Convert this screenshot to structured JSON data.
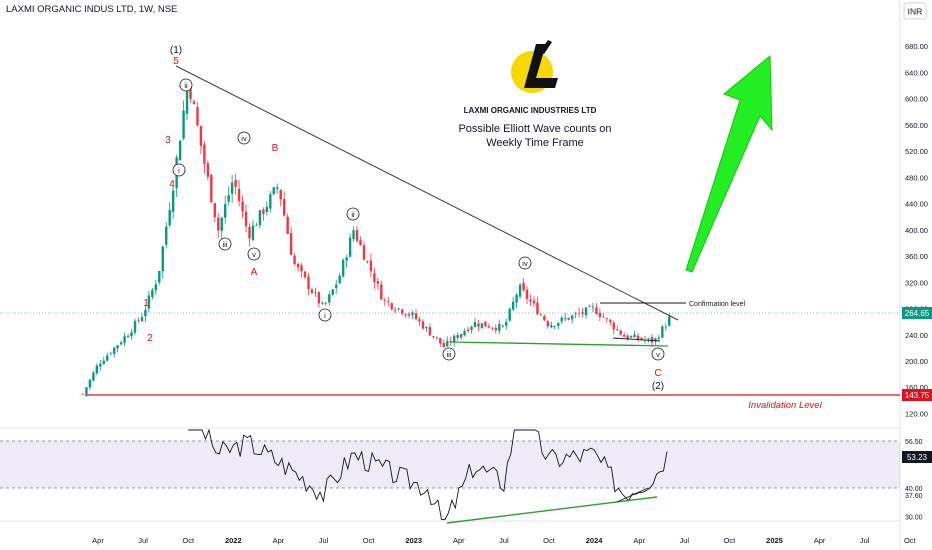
{
  "header": {
    "symbol_title": "LAXMI ORGANIC INDUS LTD, 1W, NSE"
  },
  "currency": "INR",
  "annotations": {
    "company_name": "LAXMI ORGANIC INDUSTRIES LTD",
    "note_line1": "Possible Elliott Wave counts on",
    "note_line2": "Weekly Time Frame",
    "confirmation_label": "Confirmation level",
    "invalidation_label": "Invalidation Level"
  },
  "colors": {
    "up_candle": "#089981",
    "down_candle": "#f23645",
    "wave_red": "#e0101e",
    "trendline": "#3a3a3a",
    "support_green": "#2e9e2e",
    "invalidation_red": "#e0101e",
    "arrow_green": "#22ee22",
    "price_badge": "#089981",
    "rsi_band": "#7e57c2",
    "logo_yellow": "#f5d800"
  },
  "chart_data": [
    {
      "type": "candlestick",
      "timeframe": "1W",
      "x_tick_labels": [
        "Apr",
        "Jul",
        "Oct",
        "2022",
        "Apr",
        "Jul",
        "Oct",
        "2023",
        "Apr",
        "Jul",
        "Oct",
        "2024",
        "Apr",
        "Jul",
        "Oct",
        "2025",
        "Apr",
        "Jul",
        "Oct"
      ],
      "y_tick_labels": [
        "680.00",
        "640.00",
        "600.00",
        "560.00",
        "520.00",
        "480.00",
        "440.00",
        "400.00",
        "360.00",
        "320.00",
        "280.00",
        "240.00",
        "200.00",
        "160.00",
        "120.00"
      ],
      "ylim": [
        110,
        700
      ],
      "price_path": [
        {
          "t": "2021-03",
          "v": 150
        },
        {
          "t": "2021-04",
          "v": 195
        },
        {
          "t": "2021-05",
          "v": 218
        },
        {
          "t": "2021-06",
          "v": 242
        },
        {
          "t": "2021-07",
          "v": 272
        },
        {
          "t": "2021-08",
          "v": 330
        },
        {
          "t": "2021-09",
          "v": 470
        },
        {
          "t": "2021-10",
          "v": 630
        },
        {
          "t": "2021-11",
          "v": 510
        },
        {
          "t": "2021-12",
          "v": 400
        },
        {
          "t": "2022-01",
          "v": 478
        },
        {
          "t": "2022-02",
          "v": 392
        },
        {
          "t": "2022-04",
          "v": 468
        },
        {
          "t": "2022-05",
          "v": 350
        },
        {
          "t": "2022-07",
          "v": 280
        },
        {
          "t": "2022-08",
          "v": 325
        },
        {
          "t": "2022-09",
          "v": 400
        },
        {
          "t": "2022-11",
          "v": 292
        },
        {
          "t": "2023-01",
          "v": 268
        },
        {
          "t": "2023-03",
          "v": 222
        },
        {
          "t": "2023-05",
          "v": 258
        },
        {
          "t": "2023-07",
          "v": 250
        },
        {
          "t": "2023-08",
          "v": 312
        },
        {
          "t": "2023-10",
          "v": 255
        },
        {
          "t": "2024-01",
          "v": 280
        },
        {
          "t": "2024-03",
          "v": 238
        },
        {
          "t": "2024-05",
          "v": 230
        },
        {
          "t": "2024-06",
          "v": 264.65
        }
      ],
      "last_price": "264.65",
      "invalidation_level": "143.75",
      "confirmation_level": 276,
      "wave_labels": [
        "(1)",
        "5",
        "3",
        "4",
        "1",
        "2",
        "i",
        "ii",
        "iii",
        "iv",
        "v",
        "A",
        "B",
        "i",
        "ii",
        "iii",
        "iv",
        "v",
        "C",
        "(2)"
      ]
    },
    {
      "type": "line",
      "name": "RSI",
      "y_tick_labels": [
        "56.50",
        "50.00",
        "40.00",
        "37.60",
        "30.00"
      ],
      "band": [
        40,
        56.5
      ],
      "last_value": "53.23",
      "points": [
        {
          "t": "2021-10",
          "v": 69
        },
        {
          "t": "2021-12",
          "v": 52
        },
        {
          "t": "2022-02",
          "v": 56
        },
        {
          "t": "2022-05",
          "v": 46
        },
        {
          "t": "2022-07",
          "v": 38
        },
        {
          "t": "2022-09",
          "v": 52
        },
        {
          "t": "2022-12",
          "v": 44
        },
        {
          "t": "2023-02",
          "v": 40
        },
        {
          "t": "2023-03",
          "v": 27
        },
        {
          "t": "2023-05",
          "v": 48
        },
        {
          "t": "2023-07",
          "v": 42
        },
        {
          "t": "2023-08",
          "v": 68
        },
        {
          "t": "2023-10",
          "v": 50
        },
        {
          "t": "2024-01",
          "v": 52
        },
        {
          "t": "2024-03",
          "v": 38
        },
        {
          "t": "2024-05",
          "v": 44
        },
        {
          "t": "2024-06",
          "v": 53.23
        }
      ]
    }
  ]
}
